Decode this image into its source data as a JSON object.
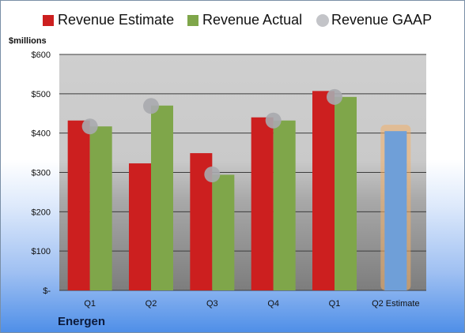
{
  "chart_data": {
    "type": "bar",
    "categories": [
      "Q1",
      "Q2",
      "Q3",
      "Q4",
      "Q1",
      "Q2 Estimate"
    ],
    "series": [
      {
        "name": "Revenue Estimate",
        "values": [
          432,
          323,
          349,
          440,
          507,
          null
        ],
        "color": "#cc1f1f"
      },
      {
        "name": "Revenue Actual",
        "values": [
          417,
          470,
          294,
          432,
          492,
          null
        ],
        "color": "#7fa64a"
      },
      {
        "name": "Revenue GAAP",
        "values": [
          417,
          469,
          295,
          432,
          492,
          null
        ],
        "color": "#a9aaae",
        "marker": "circle"
      }
    ],
    "projection": {
      "category": "Q2 Estimate",
      "value": 405,
      "color": "#6f9fd8",
      "glow": "#f2b06a"
    },
    "ylabel": "$millions",
    "ylim": [
      0,
      600
    ],
    "yticks": [
      0,
      100,
      200,
      300,
      400,
      500,
      600
    ],
    "yticklabels": [
      "$-",
      "$100",
      "$200",
      "$300",
      "$400",
      "$500",
      "$600"
    ],
    "grid": true,
    "legend_position": "top"
  },
  "company": "Energen"
}
